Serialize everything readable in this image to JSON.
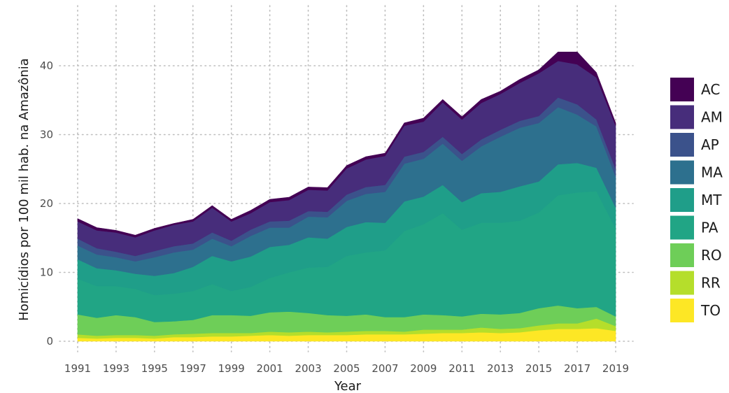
{
  "chart_data": {
    "type": "area",
    "stacked": true,
    "xlabel": "Year",
    "ylabel": "Homicídios por 100 mil hab. na Amazônia",
    "xlim": [
      1991,
      2019
    ],
    "ylim": [
      0,
      44
    ],
    "x_ticks": [
      "1991",
      "1993",
      "1995",
      "1997",
      "1999",
      "2001",
      "2003",
      "2005",
      "2007",
      "2009",
      "2011",
      "2013",
      "2015",
      "2017",
      "2019"
    ],
    "y_ticks": [
      "0",
      "10",
      "20",
      "30",
      "40"
    ],
    "grid": true,
    "legend_position": "right",
    "x": [
      1991,
      1992,
      1993,
      1994,
      1995,
      1996,
      1997,
      1998,
      1999,
      2000,
      2001,
      2002,
      2003,
      2004,
      2005,
      2006,
      2007,
      2008,
      2009,
      2010,
      2011,
      2012,
      2013,
      2014,
      2015,
      2016,
      2017,
      2018,
      2019
    ],
    "series": [
      {
        "name": "TO",
        "color": "#FDE725",
        "values": [
          0.5,
          0.4,
          0.5,
          0.5,
          0.4,
          0.6,
          0.6,
          0.7,
          0.7,
          0.8,
          0.9,
          0.8,
          0.9,
          0.9,
          0.9,
          1.0,
          1.0,
          1.0,
          1.1,
          1.2,
          1.2,
          1.3,
          1.2,
          1.3,
          1.6,
          1.8,
          1.8,
          1.9,
          1.5
        ]
      },
      {
        "name": "RR",
        "color": "#B5DE2B",
        "values": [
          0.5,
          0.4,
          0.4,
          0.4,
          0.4,
          0.4,
          0.5,
          0.5,
          0.5,
          0.4,
          0.5,
          0.5,
          0.5,
          0.4,
          0.5,
          0.5,
          0.5,
          0.4,
          0.6,
          0.5,
          0.5,
          0.7,
          0.6,
          0.6,
          0.7,
          0.8,
          0.8,
          1.4,
          0.7
        ]
      },
      {
        "name": "RO",
        "color": "#6ECE58",
        "values": [
          2.9,
          2.6,
          2.9,
          2.6,
          2.0,
          1.9,
          2.0,
          2.6,
          2.6,
          2.5,
          2.8,
          3.0,
          2.7,
          2.5,
          2.3,
          2.4,
          2.0,
          2.1,
          2.2,
          2.1,
          1.9,
          2.0,
          2.1,
          2.2,
          2.5,
          2.6,
          2.2,
          1.7,
          1.4
        ]
      },
      {
        "name": "PA",
        "color": "#21A585",
        "values": [
          5.2,
          4.6,
          4.2,
          4.1,
          3.9,
          4.0,
          4.2,
          4.5,
          3.5,
          4.2,
          5.0,
          5.7,
          6.6,
          7.0,
          8.7,
          9.0,
          9.7,
          12.5,
          13.1,
          14.8,
          12.6,
          13.2,
          13.3,
          13.4,
          13.9,
          16.0,
          16.8,
          16.8,
          12.8
        ]
      },
      {
        "name": "MT",
        "color": "#1F9E89",
        "values": [
          2.8,
          2.6,
          2.3,
          2.2,
          2.8,
          3.0,
          3.5,
          4.1,
          4.3,
          4.4,
          4.5,
          4.0,
          4.4,
          4.1,
          4.2,
          4.4,
          4.0,
          4.3,
          4.0,
          4.1,
          4.0,
          4.3,
          4.5,
          5.0,
          4.5,
          4.5,
          4.3,
          3.4,
          3.0
        ]
      },
      {
        "name": "MA",
        "color": "#2D708E",
        "values": [
          2.0,
          2.0,
          1.9,
          1.8,
          2.7,
          3.0,
          2.5,
          2.5,
          2.2,
          3.0,
          2.8,
          2.5,
          3.0,
          3.1,
          3.8,
          4.1,
          4.5,
          5.5,
          5.5,
          6.0,
          6.0,
          6.8,
          8.0,
          8.5,
          8.5,
          8.3,
          7.0,
          6.0,
          4.5
        ]
      },
      {
        "name": "AP",
        "color": "#3B528B",
        "values": [
          1.0,
          0.9,
          0.8,
          0.8,
          0.9,
          0.9,
          0.9,
          0.9,
          0.8,
          0.9,
          0.9,
          1.0,
          0.8,
          0.8,
          0.9,
          1.0,
          1.0,
          1.0,
          1.0,
          1.0,
          1.0,
          1.0,
          1.0,
          1.0,
          1.0,
          1.4,
          1.5,
          1.0,
          1.1
        ]
      },
      {
        "name": "AM",
        "color": "#472D7B",
        "values": [
          2.5,
          2.6,
          2.8,
          2.7,
          3.0,
          3.1,
          3.2,
          3.6,
          2.8,
          2.4,
          2.8,
          3.0,
          3.1,
          3.1,
          3.8,
          4.0,
          4.2,
          4.5,
          4.4,
          5.0,
          5.0,
          5.3,
          5.2,
          5.5,
          6.2,
          5.3,
          5.8,
          6.1,
          6.3
        ]
      },
      {
        "name": "AC",
        "color": "#440154",
        "values": [
          0.4,
          0.4,
          0.3,
          0.3,
          0.3,
          0.2,
          0.3,
          0.3,
          0.3,
          0.4,
          0.4,
          0.4,
          0.4,
          0.4,
          0.4,
          0.4,
          0.4,
          0.4,
          0.5,
          0.4,
          0.4,
          0.5,
          0.4,
          0.5,
          0.5,
          1.3,
          1.8,
          0.7,
          0.4
        ]
      }
    ]
  }
}
